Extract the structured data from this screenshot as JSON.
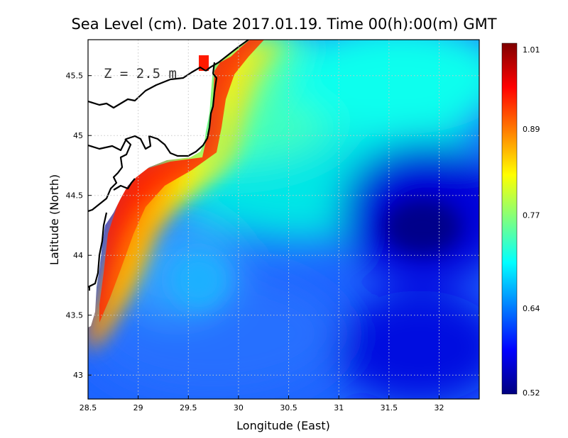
{
  "map": {
    "title": "Sea Level (cm). Date 2017.01.19. Time 00(h):00(m) GMT",
    "depth_label": "Z = 2.5 m",
    "x_axis": {
      "label": "Longitude (East)",
      "range": [
        28.5,
        32.4
      ],
      "ticks": [
        28.5,
        29,
        29.5,
        30,
        30.5,
        31,
        31.5,
        32
      ],
      "tick_labels": [
        "28.5",
        "29",
        "29.5",
        "30",
        "30.5",
        "31",
        "31.5",
        "32"
      ]
    },
    "y_axis": {
      "label": "Latitude (North)",
      "range": [
        42.8,
        45.8
      ],
      "ticks": [
        43,
        43.5,
        44,
        44.5,
        45,
        45.5
      ],
      "tick_labels": [
        "43",
        "43.5",
        "44",
        "44.5",
        "45",
        "45.5"
      ]
    },
    "grid": true,
    "colorbar": {
      "range": [
        0.52,
        1.01
      ],
      "tick_values": [
        1.01,
        0.89,
        0.77,
        0.64,
        0.52
      ],
      "tick_labels": [
        "1.01",
        "0.89",
        "0.77",
        "0.64",
        "0.52"
      ],
      "colormap": "jet",
      "colors": [
        "#00007f",
        "#0000ff",
        "#007fff",
        "#00ffff",
        "#7fff7f",
        "#ffff00",
        "#ff7f00",
        "#ff0000",
        "#7f0000"
      ]
    },
    "land_color": "#ffffff",
    "coastline_color": "#000000"
  }
}
